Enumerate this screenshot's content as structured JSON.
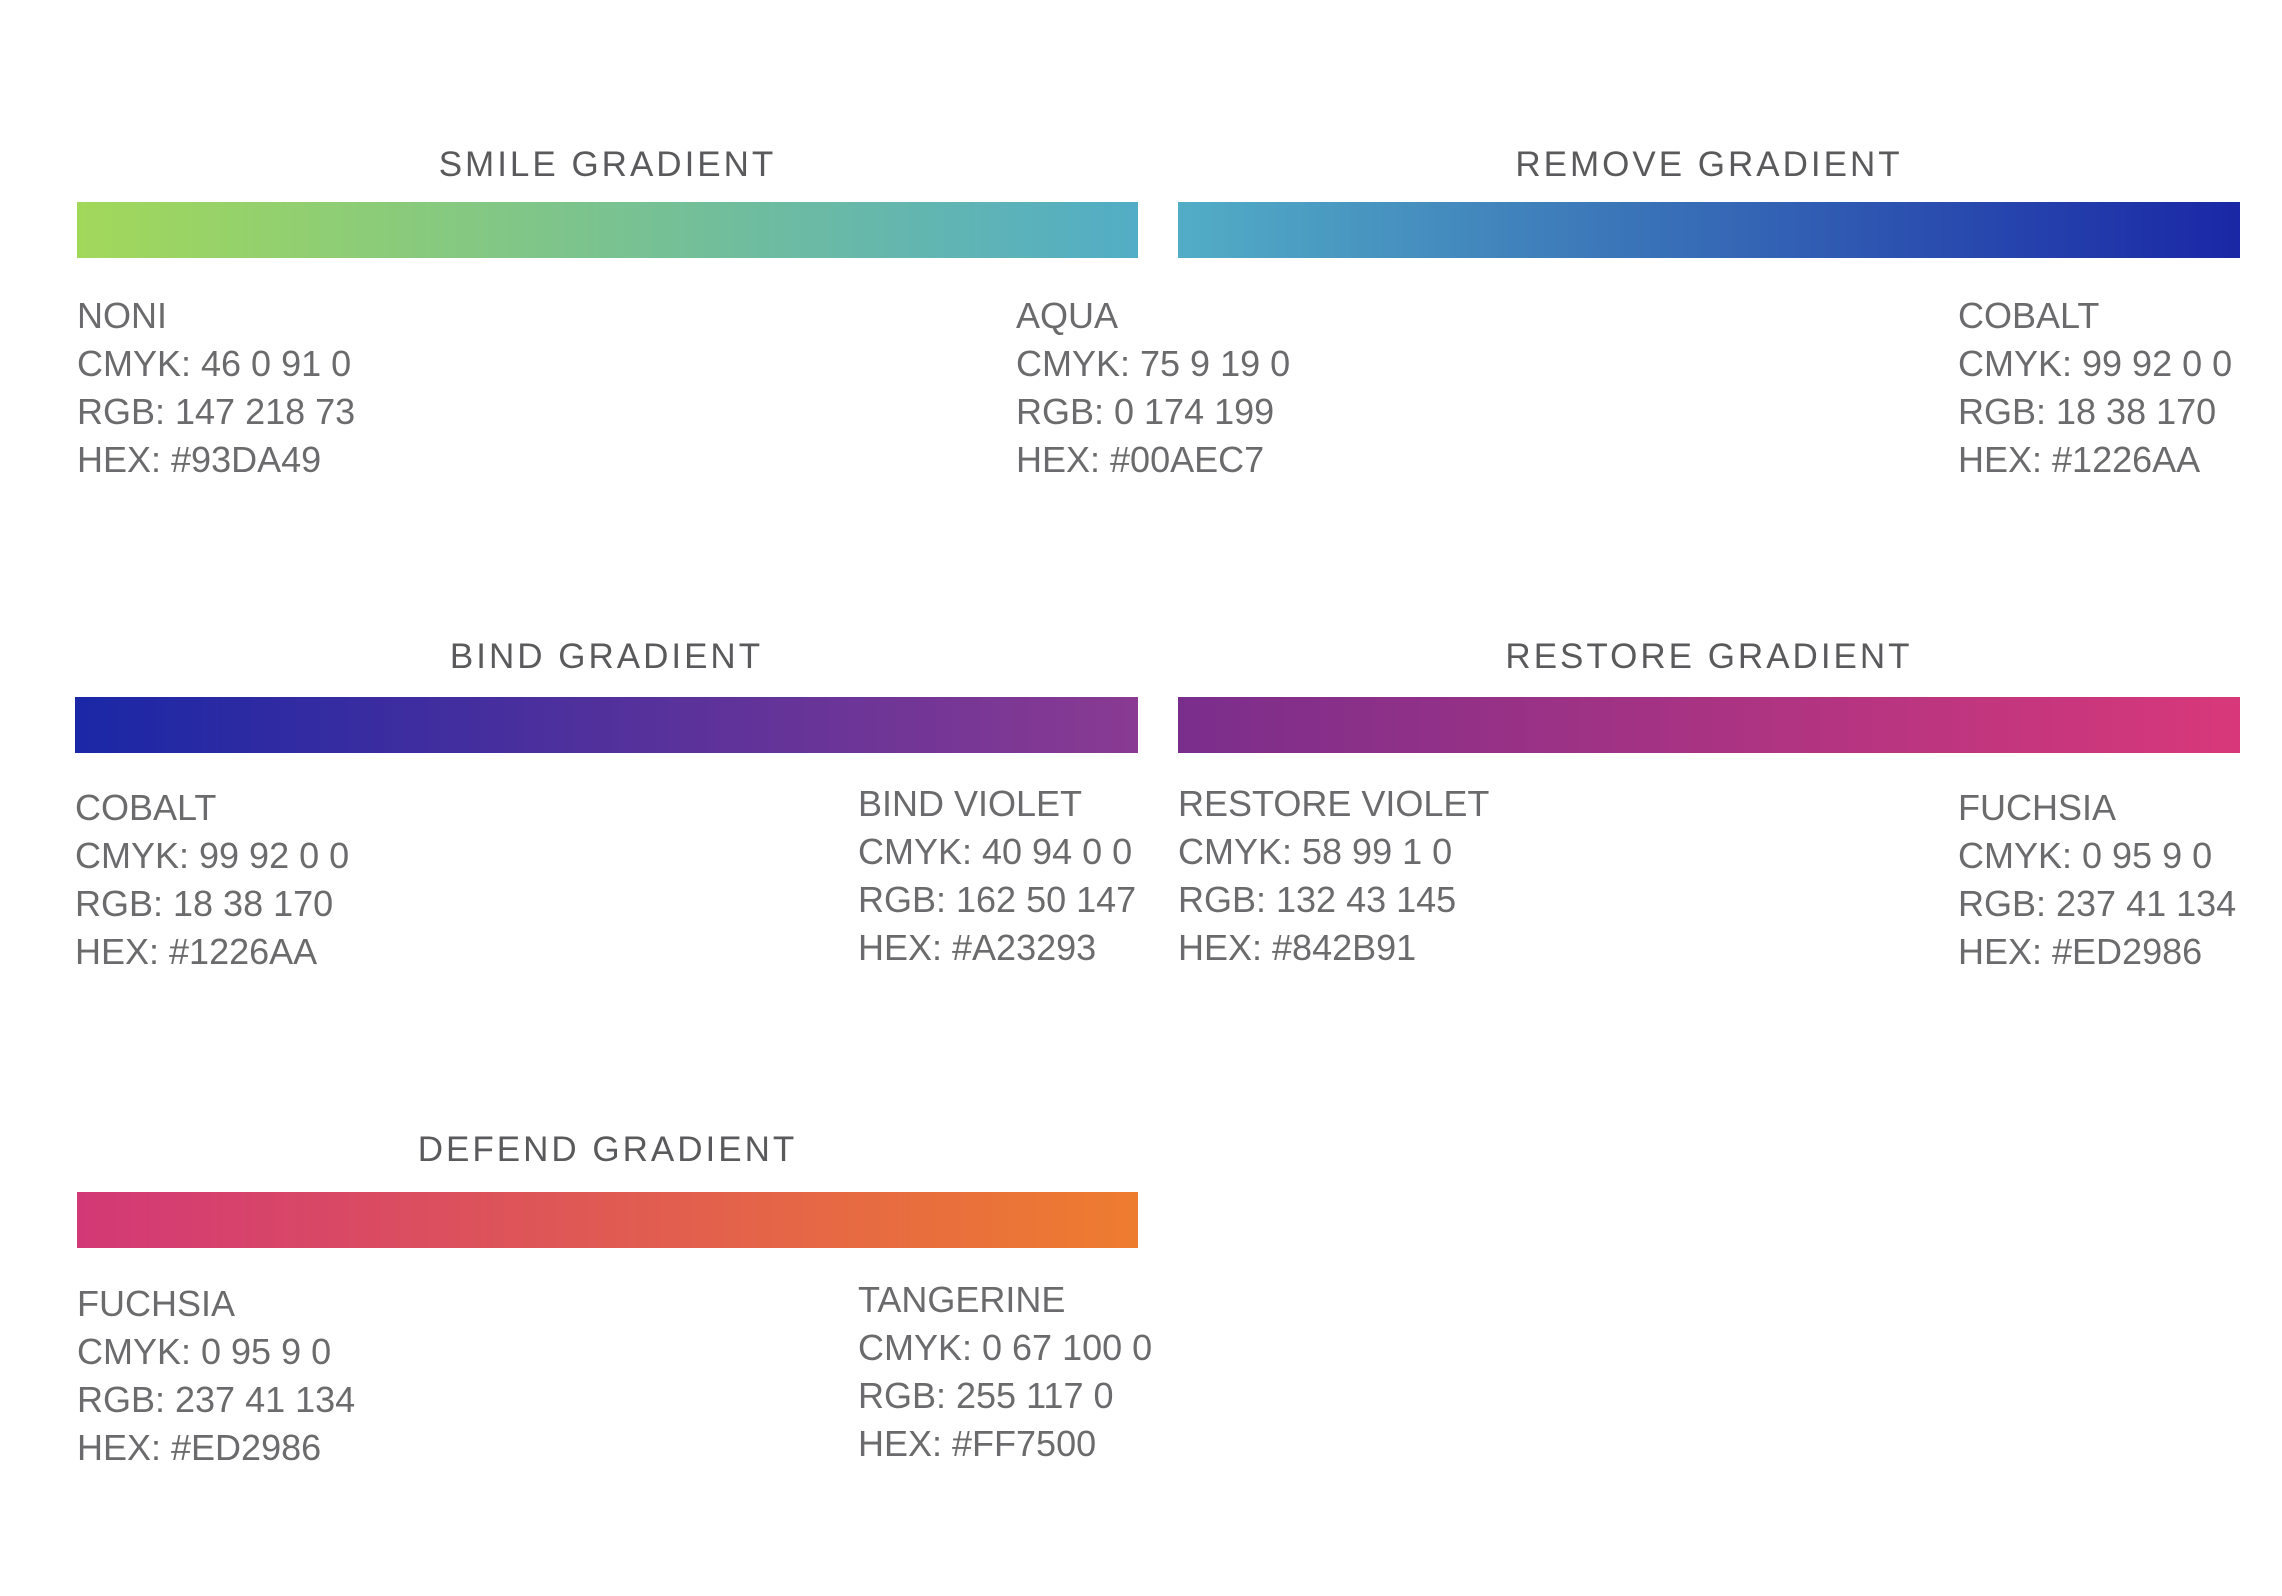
{
  "gradients": [
    {
      "title": "SMILE GRADIENT",
      "start": {
        "name": "NONI",
        "cmyk": "CMYK: 46 0 91 0",
        "rgb": "RGB: 147 218 73",
        "hex": "HEX: #93DA49",
        "color": "#A2D85A"
      },
      "end": {
        "name": "AQUA",
        "cmyk": "CMYK: 75 9 19 0",
        "rgb": "RGB: 0 174 199",
        "hex": "HEX: #00AEC7",
        "color": "#52ADC6"
      }
    },
    {
      "title": "REMOVE GRADIENT",
      "start": {
        "color": "#52ADC6"
      },
      "end": {
        "name": "COBALT",
        "cmyk": "CMYK: 99 92 0 0",
        "rgb": "RGB: 18 38 170",
        "hex": "HEX: #1226AA",
        "color": "#1A27A6"
      }
    },
    {
      "title": "BIND GRADIENT",
      "start": {
        "name": "COBALT",
        "cmyk": "CMYK: 99 92 0 0",
        "rgb": "RGB: 18 38 170",
        "hex": "HEX: #1226AA",
        "color": "#1A27A6"
      },
      "end": {
        "name": "BIND VIOLET",
        "cmyk": "CMYK: 40 94 0 0",
        "rgb": "RGB: 162 50 147",
        "hex": "HEX: #A23293",
        "color": "#8A3A92"
      }
    },
    {
      "title": "RESTORE GRADIENT",
      "start": {
        "name": "RESTORE VIOLET",
        "cmyk": "CMYK: 58 99 1 0",
        "rgb": "RGB: 132 43 145",
        "hex": "HEX: #842B91",
        "color": "#7A2E8C"
      },
      "end": {
        "name": "FUCHSIA",
        "cmyk": "CMYK: 0 95 9 0",
        "rgb": "RGB: 237 41 134",
        "hex": "HEX: #ED2986",
        "color": "#D8387A"
      }
    },
    {
      "title": "DEFEND GRADIENT",
      "start": {
        "name": "FUCHSIA",
        "cmyk": "CMYK: 0 95 9 0",
        "rgb": "RGB: 237 41 134",
        "hex": "HEX: #ED2986",
        "color": "#D23876"
      },
      "end": {
        "name": "TANGERINE",
        "cmyk": "CMYK: 0 67 100 0",
        "rgb": "RGB: 255 117 0",
        "hex": "HEX: #FF7500",
        "color": "#EE7C2F"
      }
    }
  ]
}
